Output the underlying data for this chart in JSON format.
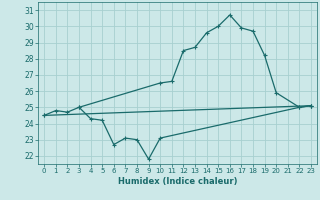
{
  "xlabel": "Humidex (Indice chaleur)",
  "xlim": [
    -0.5,
    23.5
  ],
  "ylim": [
    21.5,
    31.5
  ],
  "yticks": [
    22,
    23,
    24,
    25,
    26,
    27,
    28,
    29,
    30,
    31
  ],
  "xticks": [
    0,
    1,
    2,
    3,
    4,
    5,
    6,
    7,
    8,
    9,
    10,
    11,
    12,
    13,
    14,
    15,
    16,
    17,
    18,
    19,
    20,
    21,
    22,
    23
  ],
  "bg_color": "#cce8e8",
  "grid_color": "#a8d0d0",
  "line_color": "#1a6b6b",
  "line1_x": [
    0,
    1,
    2,
    3,
    4,
    5,
    6,
    7,
    8,
    9,
    10,
    22,
    23
  ],
  "line1_y": [
    24.5,
    24.8,
    24.7,
    25.0,
    24.3,
    24.2,
    22.7,
    23.1,
    23.0,
    21.8,
    23.1,
    25.0,
    25.1
  ],
  "line2_x": [
    3,
    10,
    11,
    12,
    13,
    14,
    15,
    16,
    17,
    18,
    19,
    20,
    22,
    23
  ],
  "line2_y": [
    25.0,
    26.5,
    26.6,
    28.5,
    28.7,
    29.6,
    30.0,
    30.7,
    29.9,
    29.7,
    28.2,
    25.9,
    25.0,
    25.1
  ],
  "line3_x": [
    0,
    23
  ],
  "line3_y": [
    24.5,
    25.1
  ]
}
